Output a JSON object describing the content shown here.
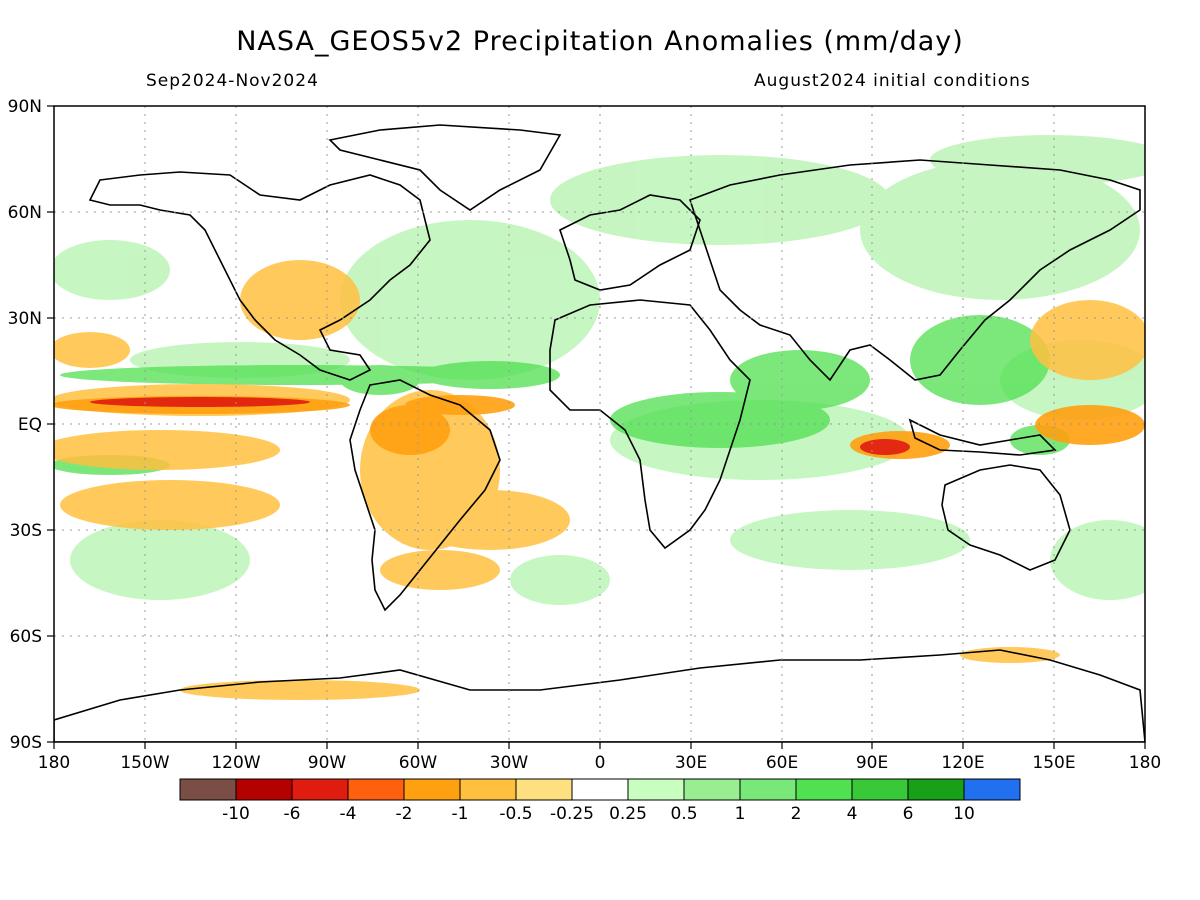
{
  "title": "NASA_GEOS5v2 Precipitation Anomalies (mm/day)",
  "period": "Sep2024-Nov2024",
  "conditions": "August2024 initial conditions",
  "y_labels": [
    "90N",
    "60N",
    "30N",
    "EQ",
    "30S",
    "60S",
    "90S"
  ],
  "x_labels": [
    "180",
    "150W",
    "120W",
    "90W",
    "60W",
    "30W",
    "0",
    "30E",
    "60E",
    "90E",
    "120E",
    "150E",
    "180"
  ],
  "colorbar": {
    "colors": [
      "#7a4e45",
      "#b50000",
      "#e01b10",
      "#ff6010",
      "#ffa010",
      "#ffc040",
      "#ffe080",
      "#ffffff",
      "#c8ffc0",
      "#98ee90",
      "#78e878",
      "#50e050",
      "#38c838",
      "#18a018",
      "#2070f0"
    ],
    "labels": [
      "-10",
      "-6",
      "-4",
      "-2",
      "-1",
      "-0.5",
      "-0.25",
      "0.25",
      "0.5",
      "1",
      "2",
      "4",
      "6",
      "10"
    ]
  }
}
